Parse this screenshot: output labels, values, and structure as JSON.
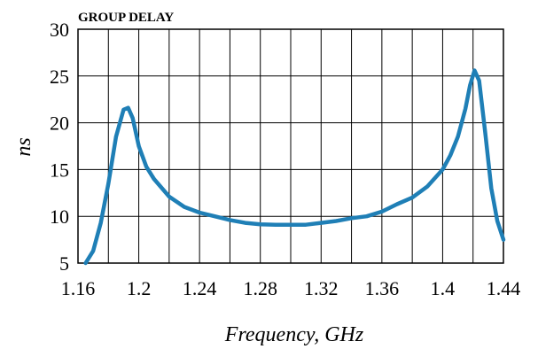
{
  "chart_data": {
    "type": "line",
    "title": "GROUP DELAY",
    "xlabel": "Frequency, GHz",
    "ylabel": "ns",
    "xlim": [
      1.16,
      1.44
    ],
    "ylim": [
      5,
      30
    ],
    "xticks": [
      "1.16",
      "1.2",
      "1.24",
      "1.28",
      "1.32",
      "1.36",
      "1.4",
      "1.44"
    ],
    "yticks": [
      "5",
      "10",
      "15",
      "20",
      "25",
      "30"
    ],
    "grid": true,
    "legend": "none",
    "series": [
      {
        "color": "#1f7fb6",
        "x": [
          1.165,
          1.17,
          1.175,
          1.18,
          1.185,
          1.19,
          1.193,
          1.196,
          1.2,
          1.205,
          1.21,
          1.22,
          1.23,
          1.24,
          1.25,
          1.26,
          1.27,
          1.28,
          1.29,
          1.3,
          1.31,
          1.32,
          1.33,
          1.34,
          1.35,
          1.36,
          1.37,
          1.38,
          1.39,
          1.4,
          1.405,
          1.41,
          1.415,
          1.418,
          1.421,
          1.424,
          1.428,
          1.432,
          1.436,
          1.44
        ],
        "y": [
          5.0,
          6.3,
          9.3,
          13.5,
          18.5,
          21.4,
          21.6,
          20.5,
          17.5,
          15.3,
          14.0,
          12.1,
          11.0,
          10.4,
          10.0,
          9.6,
          9.3,
          9.15,
          9.1,
          9.1,
          9.1,
          9.3,
          9.5,
          9.8,
          10.0,
          10.5,
          11.3,
          12.0,
          13.2,
          15.0,
          16.5,
          18.5,
          21.5,
          24.0,
          25.6,
          24.5,
          19.0,
          13.0,
          9.5,
          7.5
        ]
      }
    ]
  }
}
